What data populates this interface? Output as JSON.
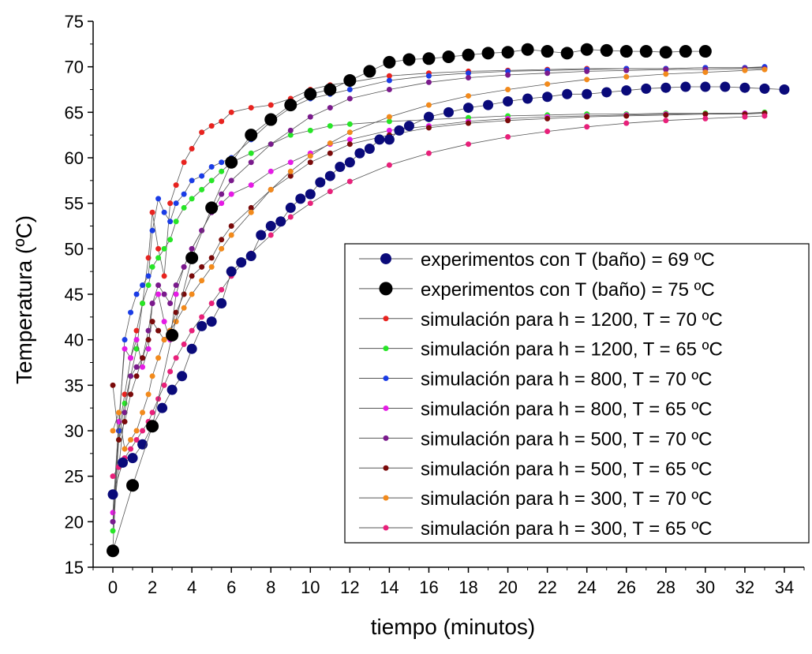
{
  "chart_data": {
    "type": "scatter",
    "xlabel": "tiempo (minutos)",
    "ylabel": "Temperatura (ºC)",
    "xlim": [
      -1,
      35
    ],
    "ylim": [
      15,
      75
    ],
    "xticks": [
      0,
      2,
      4,
      6,
      8,
      10,
      12,
      14,
      16,
      18,
      20,
      22,
      24,
      26,
      28,
      30,
      32,
      34
    ],
    "yticks": [
      15,
      20,
      25,
      30,
      35,
      40,
      45,
      50,
      55,
      60,
      65,
      70,
      75
    ],
    "legend_position": "bottom-right",
    "series": [
      {
        "name": "experimentos con T (baño) = 69 ºC",
        "color": "#0a0a7a",
        "marker": "large",
        "x": [
          0,
          0.5,
          1,
          1.5,
          2,
          2.5,
          3,
          3.5,
          4,
          4.5,
          5,
          5.5,
          6,
          6.5,
          7,
          7.5,
          8,
          8.5,
          9,
          9.5,
          10,
          10.5,
          11,
          11.5,
          12,
          12.5,
          13,
          13.5,
          14,
          14.5,
          15,
          16,
          17,
          18,
          19,
          20,
          21,
          22,
          23,
          24,
          25,
          26,
          27,
          28,
          29,
          30,
          31,
          32,
          33,
          34
        ],
        "y": [
          23,
          26.5,
          27,
          28.5,
          30.5,
          32.5,
          34.5,
          36,
          39,
          41.5,
          42,
          44,
          47.5,
          48.5,
          49.2,
          51.5,
          52.5,
          53,
          54.5,
          55.5,
          56,
          57.3,
          58,
          59,
          59.5,
          60.5,
          61,
          62,
          62,
          63,
          63.5,
          64.5,
          65,
          65.5,
          65.8,
          66.2,
          66.5,
          66.7,
          67,
          67,
          67.2,
          67.4,
          67.6,
          67.7,
          67.8,
          67.8,
          67.8,
          67.7,
          67.6,
          67.5
        ]
      },
      {
        "name": "experimentos con T (baño) = 75 ºC",
        "color": "#000000",
        "marker": "xlarge",
        "x": [
          0,
          1,
          2,
          3,
          4,
          5,
          6,
          7,
          8,
          9,
          10,
          11,
          12,
          13,
          14,
          15,
          16,
          17,
          18,
          19,
          20,
          21,
          22,
          23,
          24,
          25,
          26,
          27,
          28,
          29,
          30
        ],
        "y": [
          16.8,
          24,
          30.5,
          40.5,
          49,
          54.5,
          59.5,
          62.5,
          64.2,
          65.8,
          67,
          67.5,
          68.5,
          69.5,
          70.5,
          70.8,
          70.9,
          71.1,
          71.3,
          71.5,
          71.6,
          71.9,
          71.7,
          71.5,
          71.9,
          71.8,
          71.7,
          71.7,
          71.6,
          71.7,
          71.7
        ]
      },
      {
        "name": "simulación para h = 1200, T = 70 ºC",
        "color": "#e8231f",
        "marker": "small",
        "x": [
          0,
          0.3,
          0.6,
          0.9,
          1.2,
          1.5,
          1.8,
          2,
          2.3,
          2.6,
          2.9,
          3.2,
          3.6,
          4,
          4.5,
          5,
          5.5,
          6,
          7,
          8,
          9,
          10,
          11,
          12,
          14,
          16,
          18,
          20,
          22,
          24,
          26,
          28,
          30,
          32,
          33
        ],
        "y": [
          17,
          30,
          34,
          38,
          41,
          44,
          49,
          54,
          50,
          47,
          55,
          57,
          59.5,
          61,
          62.8,
          63.5,
          64,
          65,
          65.5,
          65.8,
          66.5,
          67.5,
          68,
          68.3,
          69,
          69.3,
          69.5,
          69.6,
          69.7,
          69.8,
          69.8,
          69.8,
          69.9,
          69.9,
          69.9
        ]
      },
      {
        "name": "simulación para h = 1200, T = 65 ºC",
        "color": "#27e627",
        "marker": "small",
        "x": [
          0,
          0.3,
          0.6,
          0.9,
          1.2,
          1.5,
          1.8,
          2,
          2.3,
          2.6,
          2.9,
          3.2,
          3.6,
          4,
          4.5,
          5,
          5.5,
          6,
          7,
          8,
          9,
          10,
          11,
          12,
          14,
          16,
          18,
          20,
          22,
          24,
          26,
          28,
          30,
          32,
          33
        ],
        "y": [
          19,
          29,
          33,
          36,
          39,
          44,
          46,
          48,
          49,
          50,
          51,
          53,
          54.5,
          55.5,
          56.5,
          57.5,
          58.5,
          59.5,
          60.5,
          61.5,
          62.5,
          63,
          63.5,
          63.7,
          64,
          64.2,
          64.4,
          64.6,
          64.7,
          64.8,
          64.8,
          64.9,
          64.9,
          64.9,
          65
        ]
      },
      {
        "name": "simulación para h = 800, T = 70 ºC",
        "color": "#1a3ce6",
        "marker": "small",
        "x": [
          0,
          0.3,
          0.6,
          0.9,
          1.2,
          1.5,
          1.8,
          2,
          2.3,
          2.6,
          2.9,
          3.2,
          3.6,
          4,
          4.5,
          5,
          5.5,
          6,
          7,
          8,
          9,
          10,
          11,
          12,
          14,
          16,
          18,
          20,
          22,
          24,
          26,
          28,
          30,
          32,
          33
        ],
        "y": [
          20,
          30,
          40,
          43,
          45,
          46,
          47,
          52,
          55.5,
          54,
          53,
          55,
          56,
          57.5,
          58,
          59,
          59.5,
          60,
          62,
          64,
          65.5,
          66.5,
          67,
          67.5,
          68.5,
          69,
          69.3,
          69.5,
          69.6,
          69.7,
          69.8,
          69.8,
          69.9,
          69.9,
          70
        ]
      },
      {
        "name": "simulación para h = 800, T = 65 ºC",
        "color": "#e51be5",
        "marker": "small",
        "x": [
          0,
          0.3,
          0.6,
          0.9,
          1.2,
          1.5,
          1.8,
          2,
          2.3,
          2.6,
          2.9,
          3.2,
          3.6,
          4,
          4.5,
          5,
          5.5,
          6,
          7,
          8,
          9,
          10,
          11,
          12,
          14,
          16,
          18,
          20,
          22,
          24,
          26,
          28,
          30,
          32,
          33
        ],
        "y": [
          21,
          31,
          39,
          38,
          40,
          37,
          39,
          44,
          45,
          42,
          40,
          45,
          48,
          50,
          52,
          54,
          55,
          56,
          57,
          58.5,
          59.5,
          60.5,
          61.5,
          62,
          63,
          63.5,
          64,
          64.3,
          64.5,
          64.6,
          64.7,
          64.8,
          64.8,
          64.9,
          64.9
        ]
      },
      {
        "name": "simulación para h = 500, T = 70 ºC",
        "color": "#7a1a8c",
        "marker": "small",
        "x": [
          0,
          0.3,
          0.6,
          0.9,
          1.2,
          1.5,
          1.8,
          2,
          2.3,
          2.6,
          2.9,
          3.2,
          3.6,
          4,
          4.5,
          5,
          5.5,
          6,
          7,
          8,
          9,
          10,
          11,
          12,
          14,
          16,
          18,
          20,
          22,
          24,
          26,
          28,
          30,
          32,
          33
        ],
        "y": [
          20,
          26,
          32,
          36,
          37,
          38,
          41,
          44,
          46,
          45,
          44,
          46,
          48,
          50,
          52,
          54,
          56,
          57.5,
          59.5,
          61.5,
          63,
          64.5,
          65.5,
          66.5,
          67.5,
          68.3,
          68.8,
          69.1,
          69.3,
          69.5,
          69.6,
          69.7,
          69.7,
          69.8,
          69.8
        ]
      },
      {
        "name": "simulación para h = 500, T = 65 ºC",
        "color": "#7a0a0a",
        "marker": "small",
        "x": [
          0,
          0.3,
          0.6,
          0.9,
          1.2,
          1.5,
          1.8,
          2,
          2.3,
          2.6,
          2.9,
          3.2,
          3.6,
          4,
          4.5,
          5,
          5.5,
          6,
          7,
          8,
          9,
          10,
          11,
          12,
          14,
          16,
          18,
          20,
          22,
          24,
          26,
          28,
          30,
          32,
          33
        ],
        "y": [
          35,
          29,
          31,
          34,
          36,
          38,
          40,
          42,
          41,
          40,
          41,
          43,
          45,
          47,
          48,
          49,
          51,
          52.5,
          54.5,
          56.5,
          58,
          59.5,
          60.5,
          61.5,
          62.5,
          63.3,
          63.8,
          64.1,
          64.3,
          64.5,
          64.6,
          64.7,
          64.8,
          64.8,
          64.9
        ]
      },
      {
        "name": "simulación para h = 300, T = 70 ºC",
        "color": "#f28a1c",
        "marker": "small",
        "x": [
          0,
          0.3,
          0.6,
          0.9,
          1.2,
          1.5,
          1.8,
          2,
          2.3,
          2.6,
          2.9,
          3.2,
          3.6,
          4,
          4.5,
          5,
          5.5,
          6,
          7,
          8,
          9,
          10,
          11,
          12,
          14,
          16,
          18,
          20,
          22,
          24,
          26,
          28,
          30,
          32,
          33
        ],
        "y": [
          30,
          32,
          28,
          29,
          30,
          32,
          34,
          36,
          38,
          40,
          41,
          42,
          43.5,
          45,
          46.5,
          48,
          50,
          51.5,
          54,
          56.5,
          58.5,
          60.2,
          61.6,
          62.8,
          64.5,
          65.8,
          66.8,
          67.5,
          68.1,
          68.6,
          68.9,
          69.2,
          69.4,
          69.6,
          69.7
        ]
      },
      {
        "name": "simulación para h = 300, T = 65 ºC",
        "color": "#e8207a",
        "marker": "small",
        "x": [
          0,
          0.3,
          0.6,
          0.9,
          1.2,
          1.5,
          1.8,
          2,
          2.3,
          2.6,
          2.9,
          3.2,
          3.6,
          4,
          4.5,
          5,
          5.5,
          6,
          7,
          8,
          9,
          10,
          11,
          12,
          14,
          16,
          18,
          20,
          22,
          24,
          26,
          28,
          30,
          32,
          33
        ],
        "y": [
          25,
          26,
          27,
          28,
          29,
          30,
          31,
          32,
          33.5,
          35,
          36.5,
          38,
          39.5,
          41,
          42.5,
          44,
          45.5,
          47,
          49.5,
          51.5,
          53.5,
          55,
          56.3,
          57.4,
          59.2,
          60.5,
          61.5,
          62.3,
          62.9,
          63.4,
          63.8,
          64.1,
          64.3,
          64.5,
          64.6
        ]
      }
    ]
  }
}
